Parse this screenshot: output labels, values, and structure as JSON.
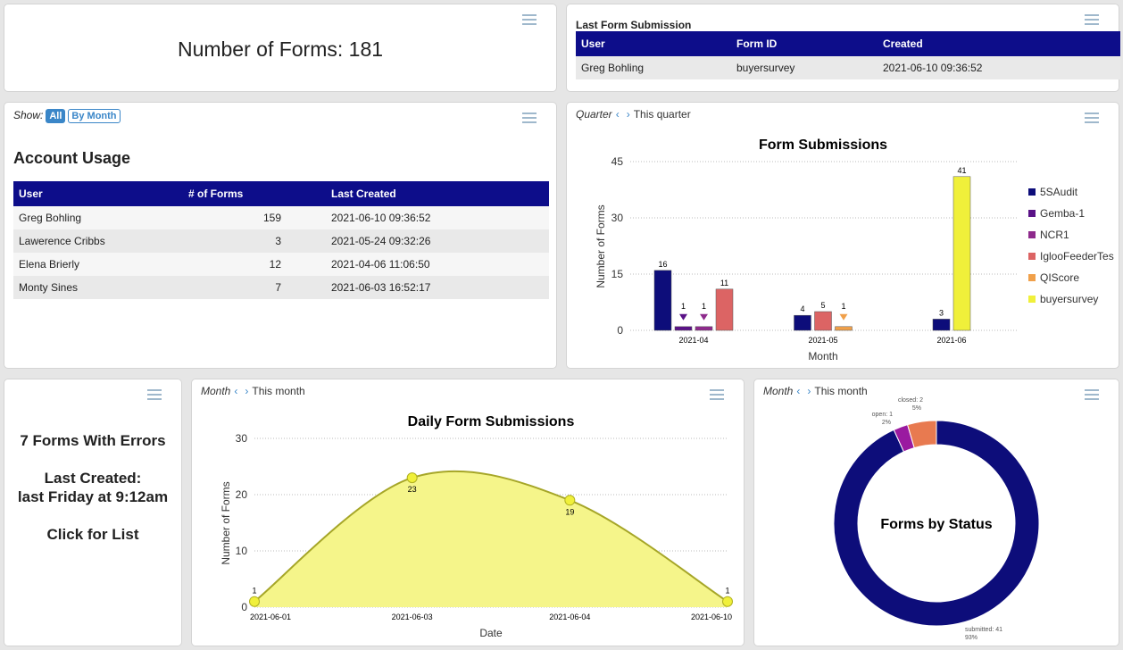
{
  "forms_count": {
    "text": "Number of Forms: 181"
  },
  "last_submission": {
    "title": "Last Form Submission",
    "headers": [
      "User",
      "Form ID",
      "Created"
    ],
    "row": [
      "Greg Bohling",
      "buyersurvey",
      "2021-06-10 09:36:52"
    ]
  },
  "account_usage": {
    "show_label": "Show:",
    "btn_all": "All",
    "btn_month": "By Month",
    "title": "Account Usage",
    "headers": [
      "User",
      "# of Forms",
      "Last Created"
    ],
    "rows": [
      [
        "Greg Bohling",
        "159",
        "2021-06-10 09:36:52"
      ],
      [
        "Lawerence Cribbs",
        "3",
        "2021-05-24 09:32:26"
      ],
      [
        "Elena Brierly",
        "12",
        "2021-04-06 11:06:50"
      ],
      [
        "Monty Sines",
        "7",
        "2021-06-03 16:52:17"
      ]
    ]
  },
  "errors": {
    "line1": "7 Forms With Errors",
    "line2": "Last Created:",
    "line3": "last Friday at 9:12am",
    "line4": "Click for List"
  },
  "quarter_nav": {
    "period": "Quarter",
    "current": "This quarter"
  },
  "month_nav": {
    "period": "Month",
    "current": "This month"
  },
  "month_nav2": {
    "period": "Month",
    "current": "This month"
  },
  "chart_data": [
    {
      "type": "bar",
      "title": "Form Submissions",
      "xlabel": "Month",
      "ylabel": "Number of Forms",
      "ylim": [
        0,
        45
      ],
      "yticks": [
        "0",
        "15",
        "30",
        "45"
      ],
      "grid": true,
      "legend": "right",
      "categories": [
        "2021-04",
        "2021-05",
        "2021-06"
      ],
      "series": [
        {
          "name": "5SAudit",
          "color": "#0d0d7a",
          "values": [
            16,
            4,
            3
          ]
        },
        {
          "name": "Gemba-1",
          "color": "#5a1287",
          "values": [
            1,
            null,
            null
          ]
        },
        {
          "name": "NCR1",
          "color": "#8e2a8c",
          "values": [
            1,
            null,
            null
          ]
        },
        {
          "name": "IglooFeederTes",
          "color": "#dc6464",
          "values": [
            11,
            5,
            null
          ]
        },
        {
          "name": "QIScore",
          "color": "#f0a04a",
          "values": [
            null,
            1,
            null
          ]
        },
        {
          "name": "buyersurvey",
          "color": "#f0f03a",
          "values": [
            null,
            null,
            41
          ]
        }
      ]
    },
    {
      "type": "area",
      "title": "Daily Form Submissions",
      "xlabel": "Date",
      "ylabel": "Number of Forms",
      "ylim": [
        0,
        30
      ],
      "yticks": [
        "0",
        "10",
        "20",
        "30"
      ],
      "grid": true,
      "categories": [
        "2021-06-01",
        "2021-06-03",
        "2021-06-04",
        "2021-06-10"
      ],
      "values": [
        1,
        23,
        19,
        1
      ],
      "color": "#f5f58a",
      "line_color": "#a6a628"
    },
    {
      "type": "pie",
      "title": "Forms by Status",
      "donut": true,
      "slices": [
        {
          "name": "submitted",
          "value": 41,
          "pct": "93%",
          "color": "#0d0d7a"
        },
        {
          "name": "open",
          "value": 1,
          "pct": "2%",
          "color": "#9a1aa0"
        },
        {
          "name": "closed",
          "value": 2,
          "pct": "5%",
          "color": "#e87a50"
        }
      ]
    }
  ]
}
